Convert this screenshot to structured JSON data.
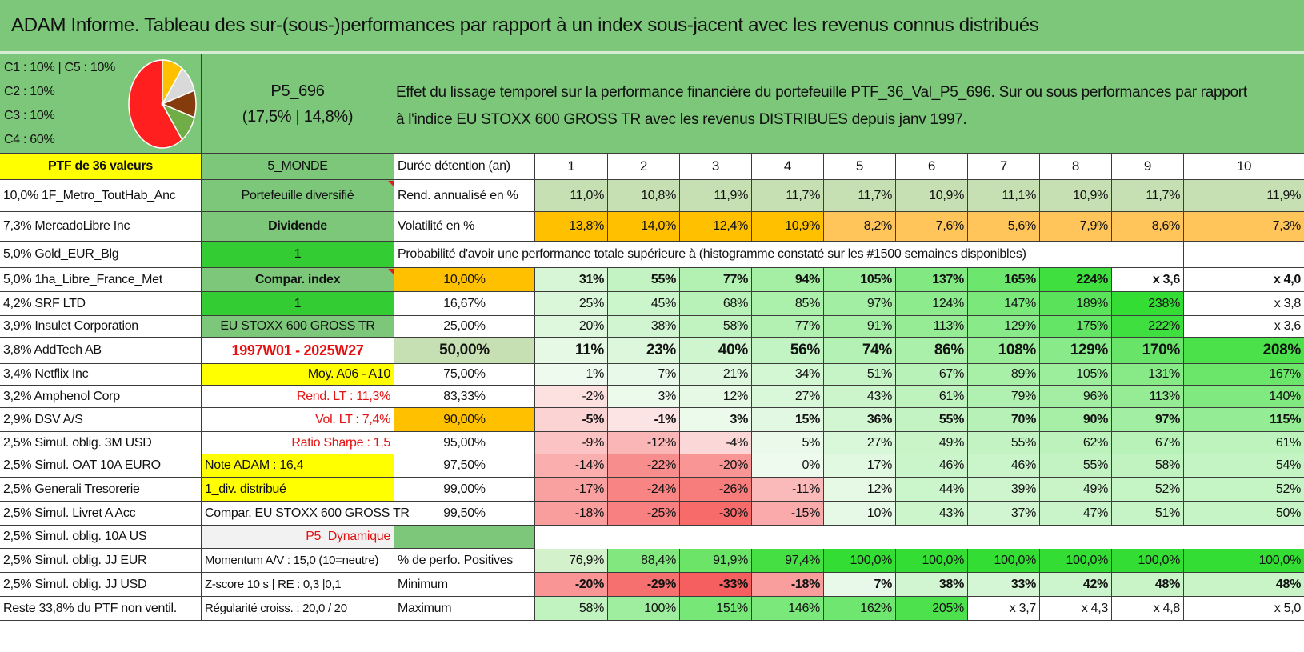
{
  "title": "ADAM Informe. Tableau des sur-(sous-)performances par rapport à un index sous-jacent avec les revenus connus distribués",
  "legend": {
    "lines": [
      "C1 : 10% | C5 : 10%",
      "C2 : 10%",
      "C3 : 10%",
      "C4 : 60%"
    ],
    "slices": [
      {
        "label": "C4",
        "value": 60,
        "color": "#ff1f1f"
      },
      {
        "label": "C3",
        "value": 10,
        "color": "#ffc000"
      },
      {
        "label": "C5",
        "value": 10,
        "color": "#d9d9d9"
      },
      {
        "label": "C1",
        "value": 10,
        "color": "#843c0c"
      },
      {
        "label": "C2",
        "value": 10,
        "color": "#70ad47"
      }
    ]
  },
  "portfolio_code": "P5_696",
  "portfolio_perf": "(17,5% | 14,8%)",
  "description_line1": "Effet du lissage temporel sur la performance financière du portefeuille PTF_36_Val_P5_696. Sur ou sous performances par rapport",
  "description_line2": "à l'indice EU STOXX 600 GROSS TR avec les revenus DISTRIBUES depuis janv 1997.",
  "holdings_header": "PTF de 36 valeurs",
  "holdings": [
    "10,0% 1F_Metro_ToutHab_Anc",
    "7,3% MercadoLibre Inc",
    "5,0% Gold_EUR_Blg",
    "5,0% 1ha_Libre_France_Met",
    "4,2% SRF LTD",
    "3,9% Insulet Corporation",
    "3,8% AddTech AB",
    "3,4% Netflix Inc",
    "3,2% Amphenol Corp",
    "2,9% DSV A/S",
    "2,5% Simul. oblig. 3M USD",
    "2,5% Simul. OAT 10A EURO",
    "2,5% Generali Tresorerie",
    "2,5% Simul. Livret A Acc",
    "2,5% Simul. oblig. 10A US",
    "2,5% Simul. oblig. JJ EUR",
    "2,5% Simul. oblig. JJ USD",
    "Reste 33,8% du PTF non ventil."
  ],
  "info_column": [
    "5_MONDE",
    "Portefeuille diversifié",
    "Dividende",
    "1",
    "Compar. index",
    "1",
    "EU STOXX 600 GROSS TR",
    "1997W01 - 2025W27",
    "Moy. A06 - A10",
    "Rend. LT : 11,3%",
    "Vol. LT : 7,4%",
    "Ratio Sharpe : 1,5",
    "Note ADAM : 16,4",
    "1_div. distribué",
    "Compar. EU STOXX 600 GROSS TR",
    "P5_Dynamique",
    "Momentum A/V : 15,0 (10=neutre)",
    "Z-score 10 s | RE : 0,3 |0,1",
    "Régularité croiss. : 20,0 / 20"
  ],
  "durations": {
    "label": "Durée détention (an)",
    "years": [
      "1",
      "2",
      "3",
      "4",
      "5",
      "6",
      "7",
      "8",
      "9",
      "10"
    ]
  },
  "annual_return": {
    "label": "Rend. annualisé en %",
    "values": [
      "11,0%",
      "10,8%",
      "11,9%",
      "11,7%",
      "11,7%",
      "10,9%",
      "11,1%",
      "10,9%",
      "11,7%",
      "11,9%"
    ]
  },
  "volatility": {
    "label": "Volatilité en %",
    "values": [
      "13,8%",
      "14,0%",
      "12,4%",
      "10,9%",
      "8,2%",
      "7,6%",
      "5,6%",
      "7,9%",
      "8,6%",
      "7,3%"
    ]
  },
  "probability_header": "Probabilité d'avoir une performance totale supérieure à (histogramme constaté sur les #1500 semaines disponibles)",
  "probability_rows": [
    {
      "p": "10,00%",
      "values": [
        "31%",
        "55%",
        "77%",
        "94%",
        "105%",
        "137%",
        "165%",
        "224%",
        "x 3,6",
        "x 4,0"
      ]
    },
    {
      "p": "16,67%",
      "values": [
        "25%",
        "45%",
        "68%",
        "85%",
        "97%",
        "124%",
        "147%",
        "189%",
        "238%",
        "x 3,8"
      ]
    },
    {
      "p": "25,00%",
      "values": [
        "20%",
        "38%",
        "58%",
        "77%",
        "91%",
        "113%",
        "129%",
        "175%",
        "222%",
        "x 3,6"
      ]
    },
    {
      "p": "50,00%",
      "values": [
        "11%",
        "23%",
        "40%",
        "56%",
        "74%",
        "86%",
        "108%",
        "129%",
        "170%",
        "208%"
      ]
    },
    {
      "p": "75,00%",
      "values": [
        "1%",
        "7%",
        "21%",
        "34%",
        "51%",
        "67%",
        "89%",
        "105%",
        "131%",
        "167%"
      ]
    },
    {
      "p": "83,33%",
      "values": [
        "-2%",
        "3%",
        "12%",
        "27%",
        "43%",
        "61%",
        "79%",
        "96%",
        "113%",
        "140%"
      ]
    },
    {
      "p": "90,00%",
      "values": [
        "-5%",
        "-1%",
        "3%",
        "15%",
        "36%",
        "55%",
        "70%",
        "90%",
        "97%",
        "115%"
      ]
    },
    {
      "p": "95,00%",
      "values": [
        "-9%",
        "-12%",
        "-4%",
        "5%",
        "27%",
        "49%",
        "55%",
        "62%",
        "67%",
        "61%"
      ]
    },
    {
      "p": "97,50%",
      "values": [
        "-14%",
        "-22%",
        "-20%",
        "0%",
        "17%",
        "46%",
        "46%",
        "55%",
        "58%",
        "54%"
      ]
    },
    {
      "p": "99,00%",
      "values": [
        "-17%",
        "-24%",
        "-26%",
        "-11%",
        "12%",
        "44%",
        "39%",
        "49%",
        "52%",
        "52%"
      ]
    },
    {
      "p": "99,50%",
      "values": [
        "-18%",
        "-25%",
        "-30%",
        "-15%",
        "10%",
        "43%",
        "37%",
        "47%",
        "51%",
        "50%"
      ]
    }
  ],
  "positive_perf": {
    "label": "% de perfo. Positives",
    "values": [
      "76,9%",
      "88,4%",
      "91,9%",
      "97,4%",
      "100,0%",
      "100,0%",
      "100,0%",
      "100,0%",
      "100,0%",
      "100,0%"
    ]
  },
  "minimum": {
    "label": "Minimum",
    "values": [
      "-20%",
      "-29%",
      "-33%",
      "-18%",
      "7%",
      "38%",
      "33%",
      "42%",
      "48%",
      "48%"
    ]
  },
  "maximum": {
    "label": "Maximum",
    "values": [
      "58%",
      "100%",
      "151%",
      "146%",
      "162%",
      "205%",
      "x 3,7",
      "x 4,3",
      "x 4,8",
      "x 5,0"
    ]
  },
  "colors": {
    "title_green": "#7dc77a",
    "mid_green": "#7dc77a",
    "bright_green": "#33cc33",
    "yellow": "#ffff00",
    "orange": "#ffc000",
    "pale_green": "#c6e0b4",
    "label_red": "#e41212"
  }
}
